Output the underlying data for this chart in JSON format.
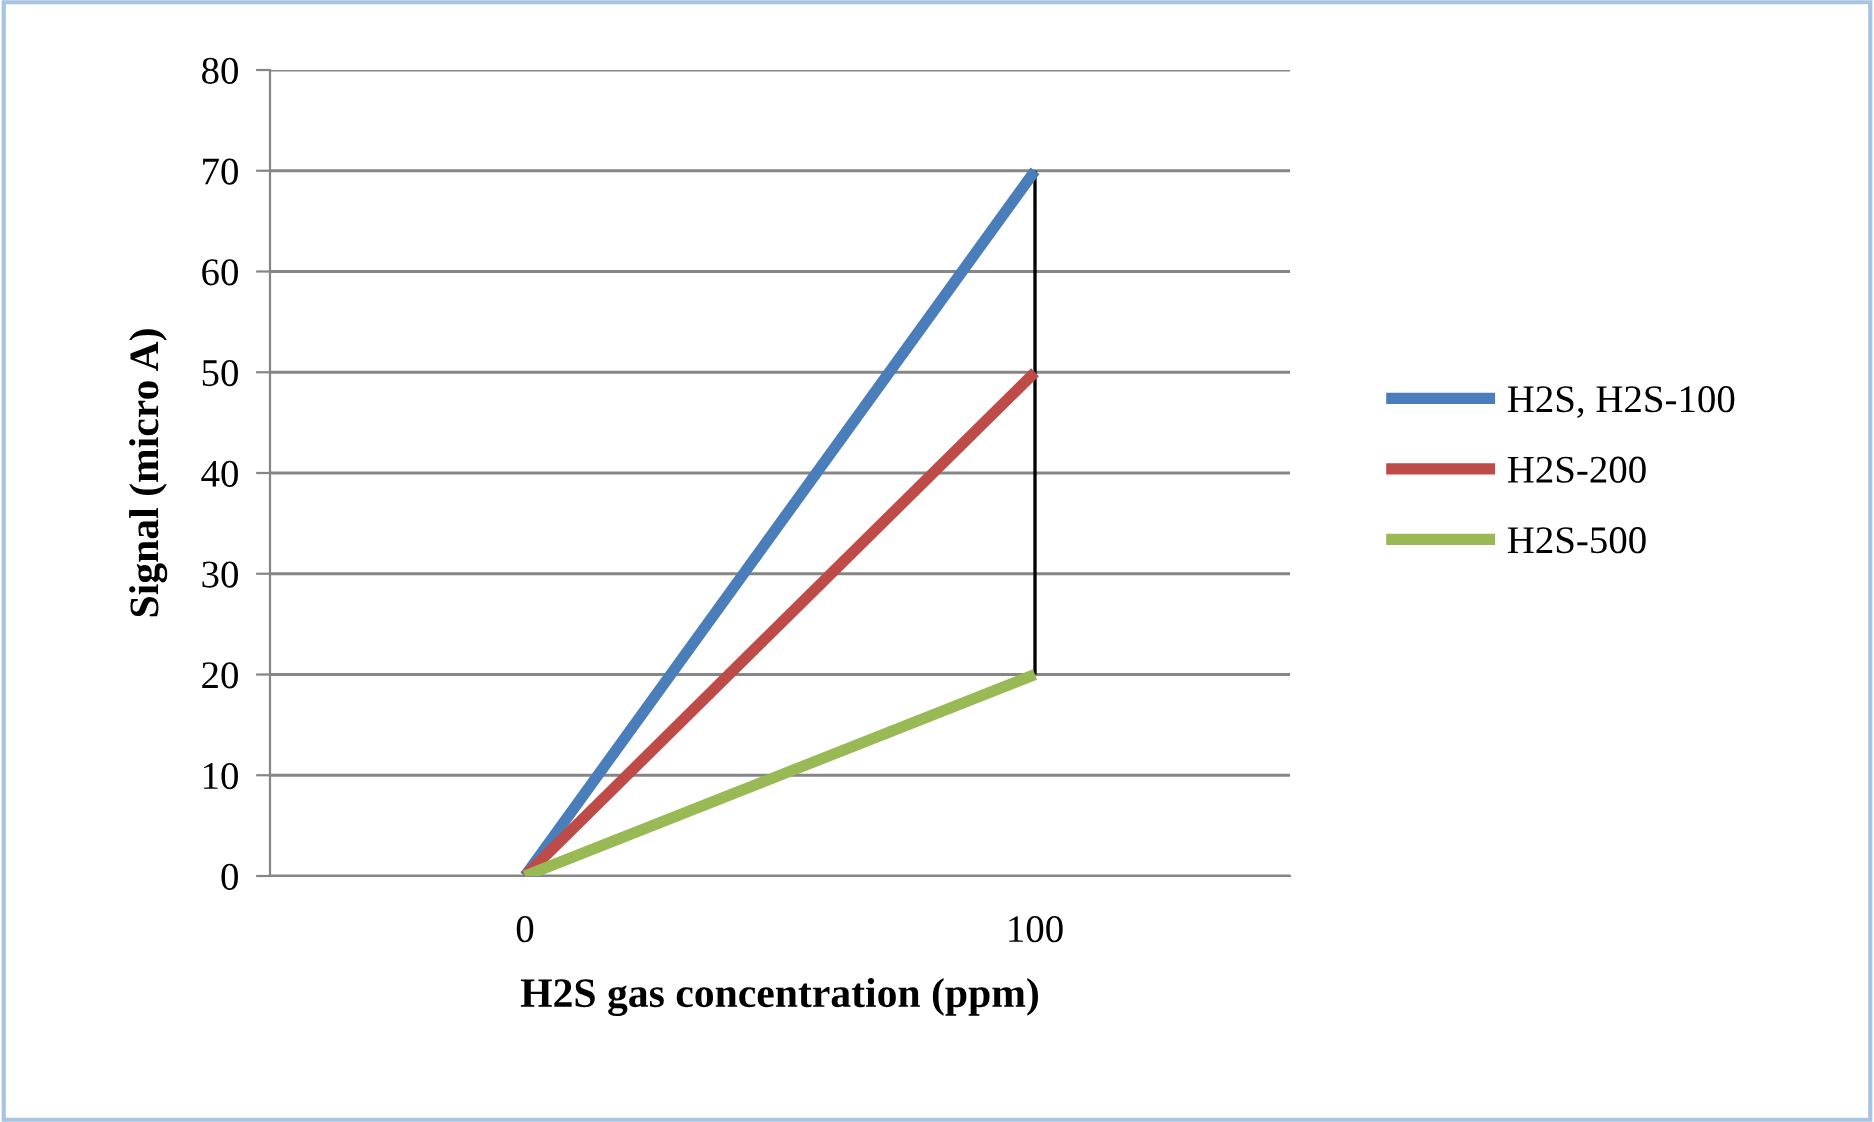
{
  "chart_data": {
    "type": "line",
    "xlabel": "H2S gas concentration (ppm)",
    "ylabel": "Signal (micro A)",
    "categories": [
      "0",
      "100"
    ],
    "series": [
      {
        "name": "H2S, H2S-100",
        "color": "#4a7ebb",
        "values": [
          0,
          70
        ]
      },
      {
        "name": "H2S-200",
        "color": "#be4b48",
        "values": [
          0,
          50
        ]
      },
      {
        "name": "H2S-500",
        "color": "#98b954",
        "values": [
          0,
          20
        ]
      },
      {
        "color": "#000000",
        "x": [
          "100",
          "100"
        ],
        "values": [
          20,
          70
        ]
      }
    ],
    "ylim": [
      0,
      80
    ],
    "yticks": [
      0,
      10,
      20,
      30,
      40,
      50,
      60,
      70,
      80
    ],
    "grid": "y",
    "legend": "right",
    "marker": "none",
    "line_style": "solid"
  }
}
